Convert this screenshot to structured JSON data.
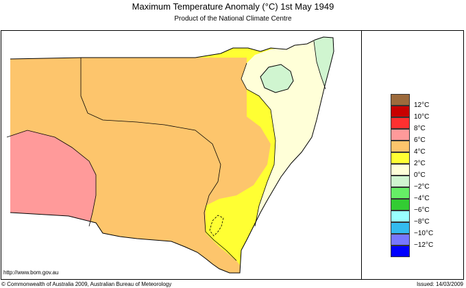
{
  "header": {
    "title": "Maximum Temperature Anomaly (°C)  1st May 1949",
    "subtitle": "Product of the National Climate Centre"
  },
  "footer": {
    "url": "http://www.bom.gov.au",
    "copyright": "© Commonwealth of Australia 2009, Australian Bureau of Meteorology",
    "issued": "Issued: 14/03/2009"
  },
  "legend": {
    "items": [
      {
        "label": "12°C",
        "color": "#9c6a3c"
      },
      {
        "label": "10°C",
        "color": "#c80000"
      },
      {
        "label": "8°C",
        "color": "#ff3030"
      },
      {
        "label": "6°C",
        "color": "#ff9a9a"
      },
      {
        "label": "4°C",
        "color": "#fdc56c"
      },
      {
        "label": "2°C",
        "color": "#ffff33"
      },
      {
        "label": "0°C",
        "color": "#ffffd8"
      },
      {
        "label": "−2°C",
        "color": "#d0f5d0"
      },
      {
        "label": "−4°C",
        "color": "#66ee66"
      },
      {
        "label": "−6°C",
        "color": "#33cc33"
      },
      {
        "label": "−8°C",
        "color": "#99ffff"
      },
      {
        "label": "−10°C",
        "color": "#33bbee"
      },
      {
        "label": "−12°C",
        "color": "#7777ff"
      },
      {
        "label": "",
        "color": "#0000ff"
      }
    ]
  },
  "map": {
    "region_colors": {
      "pink": "#ff9a9a",
      "orange": "#fdc56c",
      "yellow": "#ffff33",
      "cream": "#ffffd8",
      "lightgreen": "#d0f5d0"
    }
  }
}
